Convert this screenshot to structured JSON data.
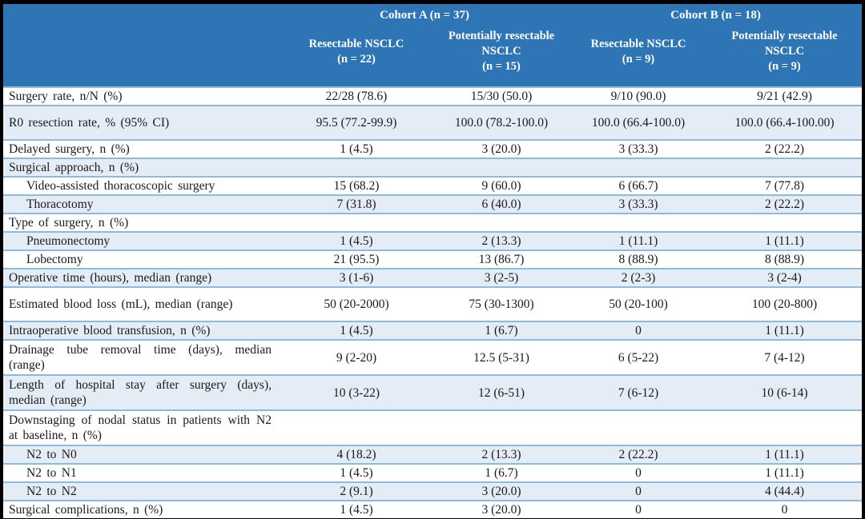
{
  "colors": {
    "header_bg": "#2E75B6",
    "band_bg": "#E4ECF6",
    "row_border": "#8FBADF",
    "frame_bg": "#000000",
    "header_text": "#FFFFFF",
    "body_text": "#1A1A1A"
  },
  "table": {
    "cohorts": [
      {
        "label": "Cohort A (n = 37)"
      },
      {
        "label": "Cohort B (n = 18)"
      }
    ],
    "columns": [
      {
        "name": "Resectable NSCLC",
        "n": "(n = 22)"
      },
      {
        "name": "Potentially resectable NSCLC",
        "n": "(n = 15)"
      },
      {
        "name": "Resectable NSCLC",
        "n": "(n = 9)"
      },
      {
        "name": "Potentially resectable NSCLC",
        "n": "(n = 9)"
      }
    ],
    "rows": [
      {
        "label": "Surgery rate, n/N (%)",
        "values": [
          "22/28 (78.6)",
          "15/30 (50.0)",
          "9/10 (90.0)",
          "9/21 (42.9)"
        ]
      },
      {
        "label": "R0 resection rate, % (95% CI)",
        "values": [
          "95.5 (77.2-99.9)",
          "100.0 (78.2-100.0)",
          "100.0 (66.4-100.0)",
          "100.0 (66.4-100.00)"
        ]
      },
      {
        "label": "Delayed surgery, n (%)",
        "values": [
          "1 (4.5)",
          "3 (20.0)",
          "3 (33.3)",
          "2 (22.2)"
        ]
      },
      {
        "label": "Surgical approach, n (%)",
        "values": [
          "",
          "",
          "",
          ""
        ]
      },
      {
        "label": "Video-assisted thoracoscopic surgery",
        "values": [
          "15 (68.2)",
          "9 (60.0)",
          "6 (66.7)",
          "7 (77.8)"
        ]
      },
      {
        "label": "Thoracotomy",
        "values": [
          "7 (31.8)",
          "6 (40.0)",
          "3 (33.3)",
          "2 (22.2)"
        ]
      },
      {
        "label": "Type of surgery, n (%)",
        "values": [
          "",
          "",
          "",
          ""
        ]
      },
      {
        "label": "Pneumonectomy",
        "values": [
          "1 (4.5)",
          "2 (13.3)",
          "1 (11.1)",
          "1 (11.1)"
        ]
      },
      {
        "label": "Lobectomy",
        "values": [
          "21 (95.5)",
          "13 (86.7)",
          "8 (88.9)",
          "8 (88.9)"
        ]
      },
      {
        "label": "Operative time (hours), median (range)",
        "values": [
          "3 (1-6)",
          "3 (2-5)",
          "2 (2-3)",
          "3 (2-4)"
        ]
      },
      {
        "label": "Estimated blood loss (mL), median (range)",
        "values": [
          "50 (20-2000)",
          "75 (30-1300)",
          "50 (20-100)",
          "100 (20-800)"
        ]
      },
      {
        "label": "Intraoperative blood transfusion, n (%)",
        "values": [
          "1 (4.5)",
          "1 (6.7)",
          "0",
          "1 (11.1)"
        ]
      },
      {
        "label": "Drainage tube removal time (days), median (range)",
        "values": [
          "9 (2-20)",
          "12.5 (5-31)",
          "6 (5-22)",
          "7 (4-12)"
        ]
      },
      {
        "label": "Length of hospital stay after surgery (days), median (range)",
        "values": [
          "10 (3-22)",
          "12 (6-51)",
          "7 (6-12)",
          "10 (6-14)"
        ]
      },
      {
        "label": "Downstaging of nodal status in patients with N2 at baseline, n (%)",
        "values": [
          "",
          "",
          "",
          ""
        ]
      },
      {
        "label": "N2 to N0",
        "values": [
          "4 (18.2)",
          "2 (13.3)",
          "2 (22.2)",
          "1 (11.1)"
        ]
      },
      {
        "label": "N2 to N1",
        "values": [
          "1 (4.5)",
          "1 (6.7)",
          "0",
          "1 (11.1)"
        ]
      },
      {
        "label": "N2 to N2",
        "values": [
          "2 (9.1)",
          "3 (20.0)",
          "0",
          "4 (44.4)"
        ]
      },
      {
        "label": "Surgical complications, n (%)",
        "values": [
          "1 (4.5)",
          "3 (20.0)",
          "0",
          "0"
        ]
      }
    ]
  }
}
